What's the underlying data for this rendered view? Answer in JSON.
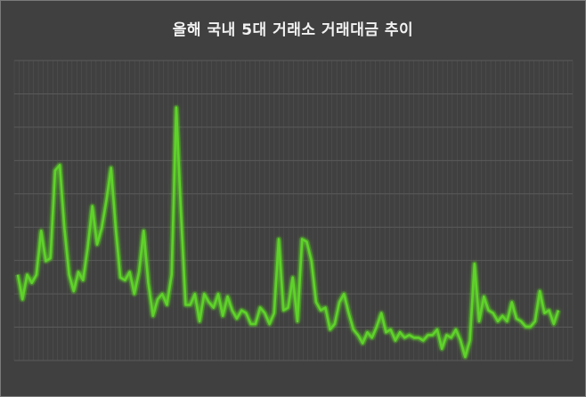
{
  "title": "올해 국내 5대 거래소 거래대금 추이",
  "colors": {
    "background": "#404040",
    "grid": "#5a5a5a",
    "line": "#5fd22a",
    "glow": "#4ec41c",
    "title": "#f2f2f2"
  },
  "chart_data": {
    "type": "line",
    "title": "올해 국내 5대 거래소 거래대금 추이",
    "xlabel": "",
    "ylabel": "",
    "grid": true,
    "legend": "none",
    "ylim": [
      0,
      100
    ],
    "series": [
      {
        "values": [
          30,
          21,
          30,
          27,
          30,
          46,
          35,
          36,
          68,
          70,
          47,
          30,
          24,
          31,
          28,
          40,
          55,
          41,
          47,
          57,
          69,
          47,
          29,
          28,
          31,
          23,
          31,
          46,
          27,
          15,
          21,
          23,
          19,
          30,
          91,
          53,
          19,
          19,
          23,
          13,
          23,
          20,
          18,
          23,
          15,
          22,
          17,
          14,
          17,
          16,
          12,
          12,
          18,
          16,
          12,
          16,
          43,
          17,
          18,
          29,
          13,
          43,
          42,
          35,
          20,
          17,
          18,
          10,
          12,
          20,
          23,
          16,
          10,
          8,
          5,
          9,
          7,
          11,
          16,
          9,
          10,
          6,
          9,
          7,
          8,
          7,
          7,
          6,
          8,
          8,
          10,
          3,
          8,
          7,
          10,
          6,
          0,
          6,
          34,
          13,
          22,
          17,
          16,
          13,
          15,
          13,
          20,
          14,
          13,
          11,
          11,
          13,
          24,
          16,
          17,
          12,
          17
        ]
      }
    ]
  }
}
